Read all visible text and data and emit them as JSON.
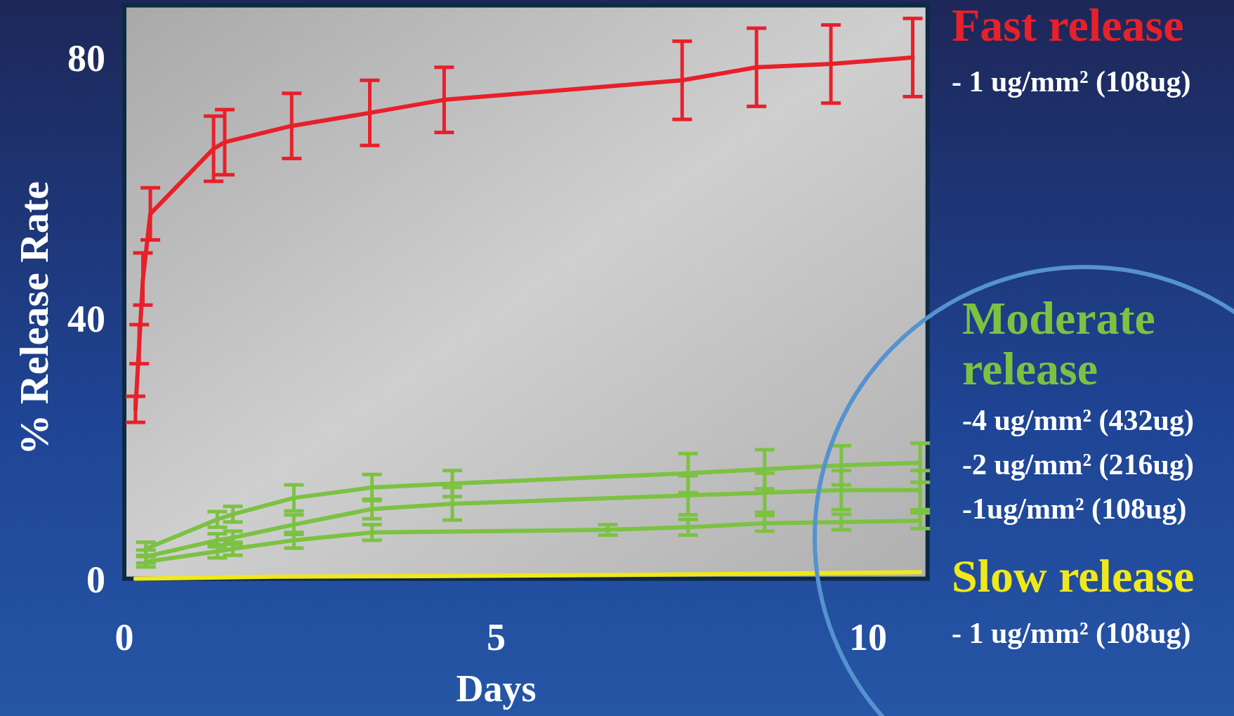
{
  "chart_data": {
    "type": "line",
    "xlabel": "Days",
    "ylabel": "% Release Rate",
    "xlim": [
      0,
      10.8
    ],
    "ylim": [
      0,
      88
    ],
    "xticks": [
      0,
      5,
      10
    ],
    "yticks": [
      0,
      40,
      80
    ],
    "grid": false,
    "legend": "right",
    "marker": "none",
    "line_style": "solid",
    "annotations": [
      "Fast release",
      "Moderate release",
      "Slow release"
    ],
    "series": [
      {
        "name": "- 1 ug/mm² (108ug)",
        "color": "#e8202a",
        "x": [
          0.15,
          0.2,
          0.25,
          0.35,
          1.2,
          1.35,
          2.25,
          3.3,
          4.3,
          7.5,
          8.5,
          9.5,
          10.6
        ],
        "values": [
          26,
          36,
          46,
          56,
          66,
          67,
          69.5,
          71.5,
          73.5,
          76.5,
          78.5,
          79,
          80
        ],
        "errors": [
          2,
          3,
          4,
          4,
          5,
          5,
          5,
          5,
          5,
          6,
          6,
          6,
          6
        ]
      },
      {
        "name": "-4 ug/mm² (432ug)",
        "color": "#7cc242",
        "x": [
          0.29,
          1.25,
          1.46,
          2.28,
          3.33,
          4.41,
          7.58,
          8.61,
          9.64,
          10.7
        ],
        "values": [
          4.6,
          9.1,
          9.9,
          12.4,
          14,
          14.6,
          16.2,
          16.8,
          17.4,
          17.8
        ],
        "errors": [
          1,
          1.2,
          1.2,
          2,
          2,
          2,
          3,
          3,
          3,
          3
        ]
      },
      {
        "name": "-2 ug/mm² (216ug)",
        "color": "#7cc242",
        "x": [
          0.29,
          1.25,
          1.46,
          2.28,
          3.33,
          4.41,
          7.58,
          8.61,
          9.64,
          10.7
        ],
        "values": [
          3.4,
          5.9,
          6.3,
          8.3,
          10.7,
          11.5,
          12.8,
          13.2,
          13.6,
          13.6
        ],
        "errors": [
          1,
          1,
          1,
          1.5,
          1.5,
          2.5,
          3,
          3,
          3,
          3
        ]
      },
      {
        "name": "-1ug/mm² (108ug)",
        "color": "#7cc242",
        "x": [
          0.29,
          1.25,
          1.46,
          2.28,
          3.33,
          6.5,
          7.58,
          8.61,
          9.64,
          10.7
        ],
        "values": [
          2.6,
          4.2,
          4.6,
          5.9,
          7.1,
          7.5,
          7.9,
          8.5,
          8.7,
          8.9
        ],
        "errors": [
          0.8,
          1,
          1,
          1.2,
          1.2,
          0.8,
          1.2,
          1.2,
          1.2,
          1.2
        ]
      },
      {
        "name": "- 1 ug/mm² (108ug)",
        "color": "#f0e81c",
        "x": [
          0.15,
          2,
          4,
          7,
          10.7
        ],
        "values": [
          0,
          0.3,
          0.4,
          0.6,
          1
        ]
      }
    ]
  }
}
